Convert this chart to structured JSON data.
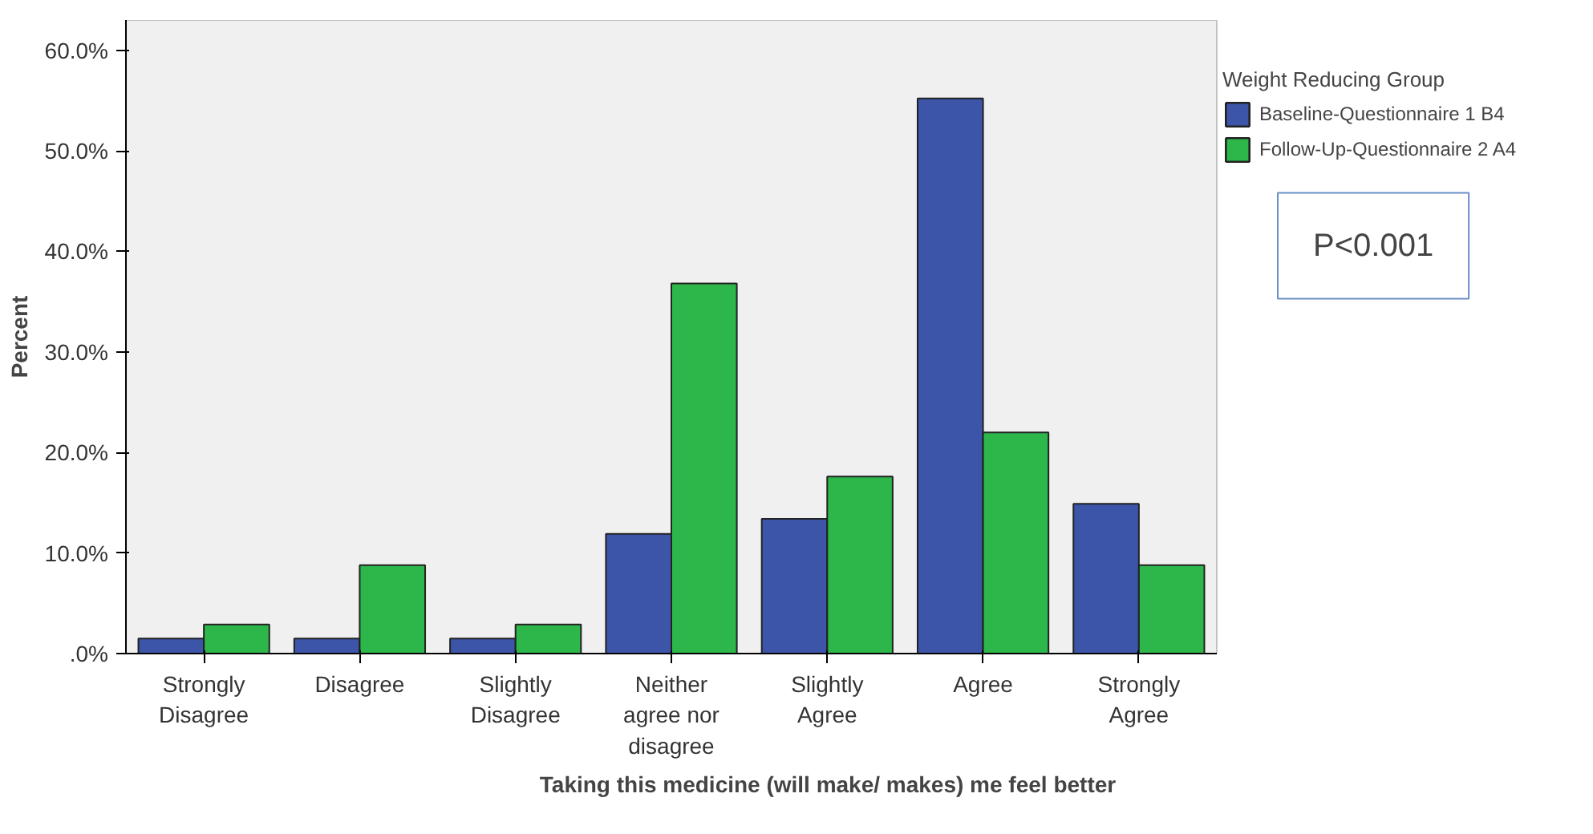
{
  "chart_data": {
    "type": "bar",
    "xlabel": "Taking this medicine (will make/ makes) me feel better",
    "ylabel": "Percent",
    "legend_title": "Weight Reducing Group",
    "categories": [
      "Strongly Disagree",
      "Disagree",
      "Slightly Disagree",
      "Neither agree nor disagree",
      "Slightly Agree",
      "Agree",
      "Strongly Agree"
    ],
    "series": [
      {
        "name": "Baseline-Questionnaire 1 B4",
        "color": "#3c55a9",
        "values": [
          1.5,
          1.5,
          1.5,
          11.9,
          13.4,
          55.2,
          14.9
        ]
      },
      {
        "name": "Follow-Up-Questionnaire 2 A4",
        "color": "#2db74a",
        "values": [
          2.9,
          8.8,
          2.9,
          36.8,
          17.6,
          22.0,
          8.8
        ]
      }
    ],
    "ylim": [
      0,
      63
    ],
    "yticks": [
      {
        "value": 0,
        "label": ".0%"
      },
      {
        "value": 10,
        "label": "10.0%"
      },
      {
        "value": 20,
        "label": "20.0%"
      },
      {
        "value": 30,
        "label": "30.0%"
      },
      {
        "value": 40,
        "label": "40.0%"
      },
      {
        "value": 50,
        "label": "50.0%"
      },
      {
        "value": 60,
        "label": "60.0%"
      }
    ],
    "grid": false,
    "legend": "right",
    "annotations": [
      "P<0.001"
    ]
  }
}
